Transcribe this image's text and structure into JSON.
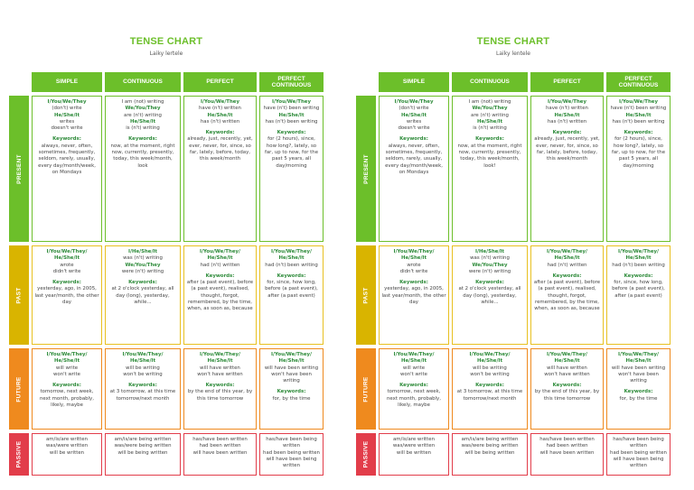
{
  "charts": [
    {
      "title": "TENSE CHART",
      "subtitle": "Laiky lertele",
      "columns": [
        "SIMPLE",
        "CONTINUOUS",
        "PERFECT",
        "PERFECT CONTINUOUS"
      ],
      "rows": [
        {
          "label": "PRESENT",
          "cells": [
            {
              "lines": [
                {
                  "t": "I/You/We/They",
                  "hi": true
                },
                {
                  "t": "(don't) write"
                },
                {
                  "t": "He/She/It",
                  "hi": true
                },
                {
                  "t": "writes"
                },
                {
                  "t": "doesn't write"
                }
              ],
              "keywords_label": "Keywords:",
              "keywords": "always, never, often, sometimes, frequently, seldom, rarely, usually, every day/month/week, on Mondays"
            },
            {
              "lines": [
                {
                  "t": "I am (not) writing"
                },
                {
                  "t": "We/You/They",
                  "hi": true
                },
                {
                  "t": "are (n't) writing"
                },
                {
                  "t": "He/She/It",
                  "hi": true
                },
                {
                  "t": "is (n't) writing"
                }
              ],
              "keywords_label": "Keywords:",
              "keywords": "now, at the moment, right now, currently, presently, today, this week/month, look"
            },
            {
              "lines": [
                {
                  "t": "I/You/We/They",
                  "hi": true
                },
                {
                  "t": "have (n't) written"
                },
                {
                  "t": "He/She/It",
                  "hi": true
                },
                {
                  "t": "has (n't) written"
                }
              ],
              "keywords_label": "Keywords:",
              "keywords": "already, just, recently, yet, ever, never, for, since, so far, lately, before, today, this week/month"
            },
            {
              "lines": [
                {
                  "t": "I/You/We/They",
                  "hi": true
                },
                {
                  "t": "have (n't) been writing"
                },
                {
                  "t": "He/She/It",
                  "hi": true
                },
                {
                  "t": "has (n't) been writing"
                }
              ],
              "keywords_label": "Keywords:",
              "keywords": "for (2 hours), since, how long?, lately, so far, up to now, for the past 5 years, all day/morning"
            }
          ]
        },
        {
          "label": "PAST",
          "cells": [
            {
              "lines": [
                {
                  "t": "I/You/We/They/",
                  "hi": true
                },
                {
                  "t": "He/She/It",
                  "hi": true
                },
                {
                  "t": "wrote"
                },
                {
                  "t": "didn't write"
                }
              ],
              "keywords_label": "Keywords:",
              "keywords": "yesterday, ago, in 2005, last year/month, the other day"
            },
            {
              "lines": [
                {
                  "t": "I/He/She/It",
                  "hi": true
                },
                {
                  "t": "was (n't) writing"
                },
                {
                  "t": "We/You/They",
                  "hi": true
                },
                {
                  "t": "were (n't) writing"
                }
              ],
              "keywords_label": "Keywords:",
              "keywords": "at 2 o'clock yesterday, all day (long), yesterday, while..."
            },
            {
              "lines": [
                {
                  "t": "I/You/We/They/",
                  "hi": true
                },
                {
                  "t": "He/She/It",
                  "hi": true
                },
                {
                  "t": "had (n't) written"
                }
              ],
              "keywords_label": "Keywords:",
              "keywords": "after (a past event), before (a past event), realised, thought, forgot, remembered, by the time, when, as soon as, because"
            },
            {
              "lines": [
                {
                  "t": "I/You/We/They/",
                  "hi": true
                },
                {
                  "t": "He/She/It",
                  "hi": true
                },
                {
                  "t": "had (n't) been writing"
                }
              ],
              "keywords_label": "Keywords:",
              "keywords": "for, since, how long, before (a past event), after (a past event)"
            }
          ]
        },
        {
          "label": "FUTURE",
          "cells": [
            {
              "lines": [
                {
                  "t": "I/You/We/They/",
                  "hi": true
                },
                {
                  "t": "He/She/It",
                  "hi": true
                },
                {
                  "t": "will write"
                },
                {
                  "t": "won't write"
                }
              ],
              "keywords_label": "Keywords:",
              "keywords": "tomorrow, next week, next month, probably, likely, maybe"
            },
            {
              "lines": [
                {
                  "t": "I/You/We/They/",
                  "hi": true
                },
                {
                  "t": "He/She/It",
                  "hi": true
                },
                {
                  "t": "will be writing"
                },
                {
                  "t": "won't be writing"
                }
              ],
              "keywords_label": "Keywords:",
              "keywords": "at 3 tomorrow, at this time tomorrow/next month"
            },
            {
              "lines": [
                {
                  "t": "I/You/We/They/",
                  "hi": true
                },
                {
                  "t": "He/She/It",
                  "hi": true
                },
                {
                  "t": "will have written"
                },
                {
                  "t": "won't have written"
                }
              ],
              "keywords_label": "Keywords:",
              "keywords": "by the end of this year, by this time tomorrow"
            },
            {
              "lines": [
                {
                  "t": "I/You/We/They/",
                  "hi": true
                },
                {
                  "t": "He/She/It",
                  "hi": true
                },
                {
                  "t": "will have been writing"
                },
                {
                  "t": "won't have been writing"
                }
              ],
              "keywords_label": "Keywords:",
              "keywords": "for, by the time"
            }
          ]
        },
        {
          "label": "PASSIVE",
          "cells": [
            {
              "lines": [
                {
                  "t": "am/is/are written"
                },
                {
                  "t": "was/were written"
                },
                {
                  "t": "will be written"
                }
              ],
              "keywords_label": "",
              "keywords": ""
            },
            {
              "lines": [
                {
                  "t": "am/is/are being written"
                },
                {
                  "t": "was/were being written"
                },
                {
                  "t": "will be being written"
                }
              ],
              "keywords_label": "",
              "keywords": ""
            },
            {
              "lines": [
                {
                  "t": "has/have been written"
                },
                {
                  "t": "had been written"
                },
                {
                  "t": "will have been written"
                }
              ],
              "keywords_label": "",
              "keywords": ""
            },
            {
              "lines": [
                {
                  "t": "has/have been being written"
                },
                {
                  "t": "had been being written"
                },
                {
                  "t": "will have been being written"
                }
              ],
              "keywords_label": "",
              "keywords": ""
            }
          ]
        }
      ]
    },
    {
      "title": "TENSE CHART",
      "subtitle": "Laiky lentele",
      "columns": [
        "SIMPLE",
        "CONTINUOUS",
        "PERFECT",
        "PERFECT CONTINUOUS"
      ],
      "rows": [
        {
          "label": "PRESENT",
          "cells": [
            {
              "lines": [
                {
                  "t": "I/You/We/They",
                  "hi": true
                },
                {
                  "t": "(don't) write"
                },
                {
                  "t": "He/She/It",
                  "hi": true
                },
                {
                  "t": "writes"
                },
                {
                  "t": "doesn't write"
                }
              ],
              "keywords_label": "Keywords:",
              "keywords": "always, never, often, sometimes, frequently, seldom, rarely, usually, every day/month/week, on Mondays"
            },
            {
              "lines": [
                {
                  "t": "I am (not) writing"
                },
                {
                  "t": "We/You/They",
                  "hi": true
                },
                {
                  "t": "are (n't) writing"
                },
                {
                  "t": "He/She/It",
                  "hi": true
                },
                {
                  "t": "is (n't) writing"
                }
              ],
              "keywords_label": "Keywords:",
              "keywords": "now, at the moment, right now, currently, presently, today, this week/month, look!"
            },
            {
              "lines": [
                {
                  "t": "I/You/We/They",
                  "hi": true
                },
                {
                  "t": "have (n't) written"
                },
                {
                  "t": "He/She/It",
                  "hi": true
                },
                {
                  "t": "has (n't) written"
                }
              ],
              "keywords_label": "Keywords:",
              "keywords": "already, just, recently, yet, ever, never, for, since, so far, lately, before, today, this week/month"
            },
            {
              "lines": [
                {
                  "t": "I/You/We/They",
                  "hi": true
                },
                {
                  "t": "have (n't) been writing"
                },
                {
                  "t": "He/She/It",
                  "hi": true
                },
                {
                  "t": "has (n't) been writing"
                }
              ],
              "keywords_label": "Keywords:",
              "keywords": "for (2 hours), since, how long?, lately, so far, up to now, for the past 5 years, all day/morning"
            }
          ]
        },
        {
          "label": "PAST",
          "cells": [
            {
              "lines": [
                {
                  "t": "I/You/We/They/",
                  "hi": true
                },
                {
                  "t": "He/She/It",
                  "hi": true
                },
                {
                  "t": "wrote"
                },
                {
                  "t": "didn't write"
                }
              ],
              "keywords_label": "Keywords:",
              "keywords": "yesterday, ago, in 2005, last year/month, the other day"
            },
            {
              "lines": [
                {
                  "t": "I/He/She/It",
                  "hi": true
                },
                {
                  "t": "was (n't) writing"
                },
                {
                  "t": "We/You/They",
                  "hi": true
                },
                {
                  "t": "were (n't) writing"
                }
              ],
              "keywords_label": "Keywords:",
              "keywords": "at 2 o'clock yesterday, all day (long), yesterday, while..."
            },
            {
              "lines": [
                {
                  "t": "I/You/We/They/",
                  "hi": true
                },
                {
                  "t": "He/She/It",
                  "hi": true
                },
                {
                  "t": "had (n't) written"
                }
              ],
              "keywords_label": "Keywords:",
              "keywords": "after (a past event), before (a past event), realised, thought, forgot, remembered, by the time, when, as soon as, because"
            },
            {
              "lines": [
                {
                  "t": "I/You/We/They/",
                  "hi": true
                },
                {
                  "t": "He/She/It",
                  "hi": true
                },
                {
                  "t": "had (n't) been writing"
                }
              ],
              "keywords_label": "Keywords:",
              "keywords": "for, since, how long, before (a past event), after (a past event)"
            }
          ]
        },
        {
          "label": "FUTURE",
          "cells": [
            {
              "lines": [
                {
                  "t": "I/You/We/They/",
                  "hi": true
                },
                {
                  "t": "He/She/It",
                  "hi": true
                },
                {
                  "t": "will write"
                },
                {
                  "t": "won't write"
                }
              ],
              "keywords_label": "Keywords:",
              "keywords": "tomorrow, next week, next month, probably, likely, maybe"
            },
            {
              "lines": [
                {
                  "t": "I/You/We/They/",
                  "hi": true
                },
                {
                  "t": "He/She/It",
                  "hi": true
                },
                {
                  "t": "will be writing"
                },
                {
                  "t": "won't be writing"
                }
              ],
              "keywords_label": "Keywords:",
              "keywords": "at 3 tomorrow, at this time tomorrow/next month"
            },
            {
              "lines": [
                {
                  "t": "I/You/We/They/",
                  "hi": true
                },
                {
                  "t": "He/She/It",
                  "hi": true
                },
                {
                  "t": "will have written"
                },
                {
                  "t": "won't have written"
                }
              ],
              "keywords_label": "Keywords:",
              "keywords": "by the end of this year, by this time tomorrow"
            },
            {
              "lines": [
                {
                  "t": "I/You/We/They/",
                  "hi": true
                },
                {
                  "t": "He/She/It",
                  "hi": true
                },
                {
                  "t": "will have been writing"
                },
                {
                  "t": "won't have been writing"
                }
              ],
              "keywords_label": "Keywords:",
              "keywords": "for, by the time"
            }
          ]
        },
        {
          "label": "PASSIVE",
          "cells": [
            {
              "lines": [
                {
                  "t": "am/is/are written"
                },
                {
                  "t": "was/were written"
                },
                {
                  "t": "will be written"
                }
              ],
              "keywords_label": "",
              "keywords": ""
            },
            {
              "lines": [
                {
                  "t": "am/is/are being written"
                },
                {
                  "t": "was/were being written"
                },
                {
                  "t": "will be being written"
                }
              ],
              "keywords_label": "",
              "keywords": ""
            },
            {
              "lines": [
                {
                  "t": "has/have been written"
                },
                {
                  "t": "had been written"
                },
                {
                  "t": "will have been written"
                }
              ],
              "keywords_label": "",
              "keywords": ""
            },
            {
              "lines": [
                {
                  "t": "has/have been being written"
                },
                {
                  "t": "had been being written"
                },
                {
                  "t": "will have been being written"
                }
              ],
              "keywords_label": "",
              "keywords": ""
            }
          ]
        }
      ]
    }
  ]
}
